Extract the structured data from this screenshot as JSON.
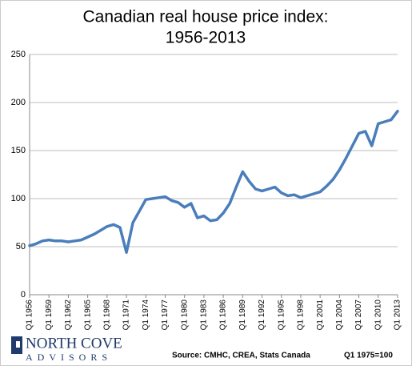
{
  "chart_data": {
    "type": "line",
    "title": [
      "Canadian real house price index:",
      "1956-2013"
    ],
    "categories": [
      "Q1 1956",
      null,
      null,
      "Q1 1959",
      null,
      null,
      "Q1 1962",
      null,
      null,
      "Q1 1965",
      null,
      null,
      "Q1 1968",
      null,
      null,
      "Q1 1971",
      null,
      null,
      "Q1 1974",
      null,
      null,
      "Q1 1977",
      null,
      null,
      "Q1 1980",
      null,
      null,
      "Q1 1983",
      null,
      null,
      "Q1 1986",
      null,
      null,
      "Q1 1989",
      null,
      null,
      "Q1 1992",
      null,
      null,
      "Q1 1995",
      null,
      null,
      "Q1 1998",
      null,
      null,
      "Q1 2001",
      null,
      null,
      "Q1 2004",
      null,
      null,
      "Q1 2007",
      null,
      null,
      "Q1 2010",
      null,
      null,
      "Q1 2013"
    ],
    "values": [
      51,
      53,
      56,
      57,
      56,
      56,
      55,
      56,
      57,
      60,
      63,
      67,
      71,
      73,
      70,
      44,
      75,
      87,
      99,
      100,
      101,
      102,
      98,
      96,
      91,
      95,
      80,
      82,
      77,
      78,
      85,
      95,
      112,
      128,
      118,
      110,
      108,
      110,
      112,
      106,
      103,
      104,
      101,
      103,
      105,
      107,
      113,
      120,
      130,
      142,
      155,
      168,
      170,
      155,
      178,
      180,
      182,
      191
    ],
    "color": "#4a7ebb",
    "ylim": [
      0,
      250
    ],
    "yticks": [
      0,
      50,
      100,
      150,
      200,
      250
    ],
    "grid": true,
    "source": "Source: CMHC, CREA, Stats Canada",
    "note": "Q1 1975=100",
    "logo": [
      "NORTH COVE",
      "ADVISORS"
    ]
  }
}
